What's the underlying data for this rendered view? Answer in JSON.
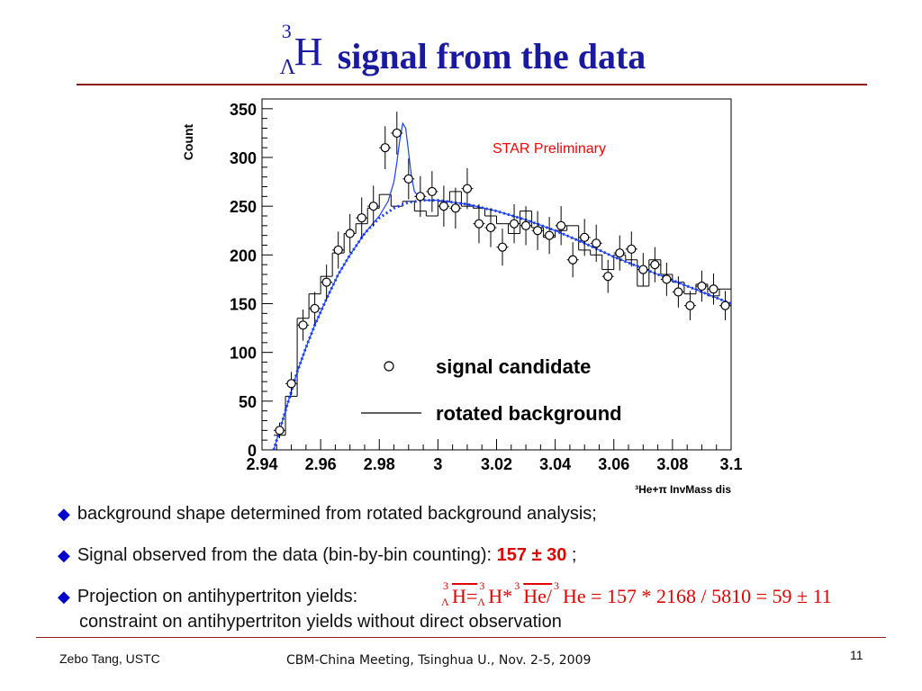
{
  "title": {
    "sup": "3",
    "sub": "Λ",
    "sym": "H",
    "text": "signal from the data"
  },
  "chart_data": {
    "type": "scatter",
    "annotation": "STAR Preliminary",
    "ylabel": "Count",
    "xlabel": "³He+π InvMass dis",
    "xlim": [
      2.94,
      3.1
    ],
    "ylim": [
      0,
      360
    ],
    "xticks": [
      "2.94",
      "2.96",
      "2.98",
      "3",
      "3.02",
      "3.04",
      "3.06",
      "3.08",
      "3.1"
    ],
    "yticks": [
      "0",
      "50",
      "100",
      "150",
      "200",
      "250",
      "300",
      "350"
    ],
    "legend": [
      {
        "label": "signal candidate",
        "marker": "open-circle"
      },
      {
        "label": "rotated background",
        "marker": "line"
      }
    ],
    "signal_candidate": {
      "x": [
        2.946,
        2.95,
        2.954,
        2.958,
        2.962,
        2.966,
        2.97,
        2.974,
        2.978,
        2.982,
        2.986,
        2.99,
        2.994,
        2.998,
        3.002,
        3.006,
        3.01,
        3.014,
        3.018,
        3.022,
        3.026,
        3.03,
        3.034,
        3.038,
        3.042,
        3.046,
        3.05,
        3.054,
        3.058,
        3.062,
        3.066,
        3.07,
        3.074,
        3.078,
        3.082,
        3.086,
        3.09,
        3.094,
        3.098
      ],
      "y": [
        20,
        68,
        128,
        145,
        172,
        205,
        222,
        238,
        250,
        310,
        325,
        278,
        260,
        265,
        250,
        248,
        268,
        232,
        228,
        208,
        232,
        230,
        225,
        220,
        230,
        195,
        218,
        212,
        178,
        202,
        206,
        185,
        190,
        175,
        162,
        148,
        168,
        165,
        148
      ],
      "yerr": [
        8,
        12,
        16,
        17,
        18,
        19,
        20,
        21,
        21,
        22,
        22,
        21,
        21,
        21,
        21,
        21,
        21,
        20,
        20,
        19,
        20,
        20,
        20,
        19,
        20,
        18,
        19,
        19,
        17,
        18,
        18,
        17,
        18,
        17,
        16,
        15,
        16,
        16,
        15
      ]
    },
    "rotated_background": {
      "x": [
        2.946,
        2.95,
        2.954,
        2.958,
        2.962,
        2.966,
        2.97,
        2.974,
        2.978,
        2.982,
        2.986,
        2.99,
        2.994,
        2.998,
        3.002,
        3.006,
        3.01,
        3.014,
        3.018,
        3.022,
        3.026,
        3.03,
        3.034,
        3.038,
        3.042,
        3.046,
        3.05,
        3.054,
        3.058,
        3.062,
        3.066,
        3.07,
        3.074,
        3.078,
        3.082,
        3.086,
        3.09,
        3.094,
        3.098
      ],
      "y": [
        15,
        55,
        135,
        160,
        178,
        202,
        222,
        232,
        248,
        262,
        250,
        255,
        245,
        240,
        255,
        265,
        250,
        248,
        240,
        232,
        222,
        245,
        228,
        218,
        225,
        230,
        205,
        200,
        185,
        200,
        195,
        168,
        195,
        180,
        172,
        160,
        170,
        158,
        165
      ]
    },
    "background_fit": {
      "x": [
        2.944,
        2.946,
        2.948,
        2.95,
        2.952,
        2.955,
        2.958,
        2.962,
        2.966,
        2.97,
        2.975,
        2.98,
        2.985,
        2.99,
        2.995,
        3.0,
        3.01,
        3.02,
        3.03,
        3.04,
        3.05,
        3.06,
        3.07,
        3.08,
        3.09,
        3.1
      ],
      "y": [
        0,
        20,
        40,
        60,
        80,
        105,
        128,
        155,
        180,
        200,
        222,
        238,
        248,
        254,
        256,
        256,
        252,
        245,
        236,
        225,
        212,
        198,
        186,
        174,
        162,
        150
      ]
    },
    "signal_fit": {
      "x": [
        2.944,
        2.946,
        2.948,
        2.95,
        2.952,
        2.955,
        2.958,
        2.962,
        2.966,
        2.97,
        2.975,
        2.98,
        2.983,
        2.985,
        2.986,
        2.987,
        2.988,
        2.989,
        2.99,
        2.991,
        2.992,
        2.994,
        2.996,
        3.0,
        3.01,
        3.02,
        3.03,
        3.04,
        3.05,
        3.06,
        3.07,
        3.08,
        3.09,
        3.1
      ],
      "y": [
        0,
        20,
        40,
        60,
        80,
        105,
        128,
        155,
        180,
        200,
        222,
        240,
        255,
        275,
        295,
        318,
        335,
        330,
        305,
        280,
        265,
        258,
        256,
        256,
        252,
        245,
        236,
        225,
        212,
        198,
        186,
        174,
        162,
        150
      ]
    }
  },
  "bullets": [
    {
      "text": "background shape determined from rotated background analysis;"
    },
    {
      "text": "Signal observed from the data (bin-by-bin counting): ",
      "value": "157 ± 30",
      "tail": " ;"
    },
    {
      "text": "Projection on antihypertriton yields:"
    }
  ],
  "formula": {
    "part1": "H=",
    "part2": "H*",
    "part3": "He/",
    "part4": "He = 157 * 2168 / 5810 = 59 ± 11",
    "sup": "3",
    "sub": "Λ"
  },
  "continuation": "constraint on antihypertriton yields without direct observation",
  "footer": {
    "left": "Zebo Tang, USTC",
    "center": "CBM-China Meeting, Tsinghua U., Nov. 2-5, 2009",
    "page": "11"
  }
}
